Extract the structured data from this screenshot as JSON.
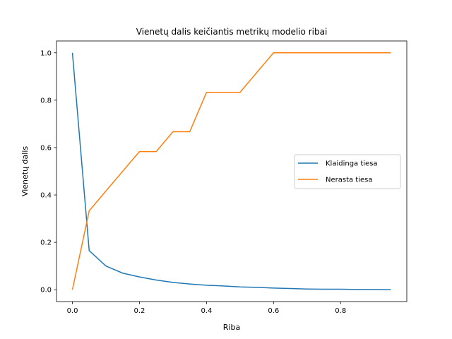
{
  "chart_data": {
    "type": "line",
    "title": "Vienetų dalis keičiantis metrikų modelio ribai",
    "xlabel": "Riba",
    "ylabel": "Vienetų dalis",
    "xlim": [
      -0.0475,
      0.9975
    ],
    "ylim": [
      -0.05,
      1.05
    ],
    "xticks": [
      0.0,
      0.2,
      0.4,
      0.6,
      0.8
    ],
    "xtick_labels": [
      "0.0",
      "0.2",
      "0.4",
      "0.6",
      "0.8"
    ],
    "yticks": [
      0.0,
      0.2,
      0.4,
      0.6,
      0.8,
      1.0
    ],
    "ytick_labels": [
      "0.0",
      "0.2",
      "0.4",
      "0.6",
      "0.8",
      "1.0"
    ],
    "grid": false,
    "legend_position": "center-right",
    "x": [
      0.0,
      0.05,
      0.1,
      0.15,
      0.2,
      0.25,
      0.3,
      0.35,
      0.4,
      0.45,
      0.5,
      0.55,
      0.6,
      0.65,
      0.7,
      0.75,
      0.8,
      0.85,
      0.9,
      0.95
    ],
    "series": [
      {
        "name": "Klaidinga tiesa",
        "color": "#1f77b4",
        "values": [
          1.0,
          0.165,
          0.1,
          0.07,
          0.054,
          0.041,
          0.031,
          0.024,
          0.019,
          0.016,
          0.012,
          0.01,
          0.007,
          0.005,
          0.003,
          0.002,
          0.002,
          0.001,
          0.001,
          0.0
        ]
      },
      {
        "name": "Nerasta tiesa",
        "color": "#ff7f0e",
        "values": [
          0.0,
          0.333,
          0.417,
          0.5,
          0.583,
          0.583,
          0.667,
          0.667,
          0.833,
          0.833,
          0.833,
          0.917,
          1.0,
          1.0,
          1.0,
          1.0,
          1.0,
          1.0,
          1.0,
          1.0
        ]
      }
    ]
  }
}
